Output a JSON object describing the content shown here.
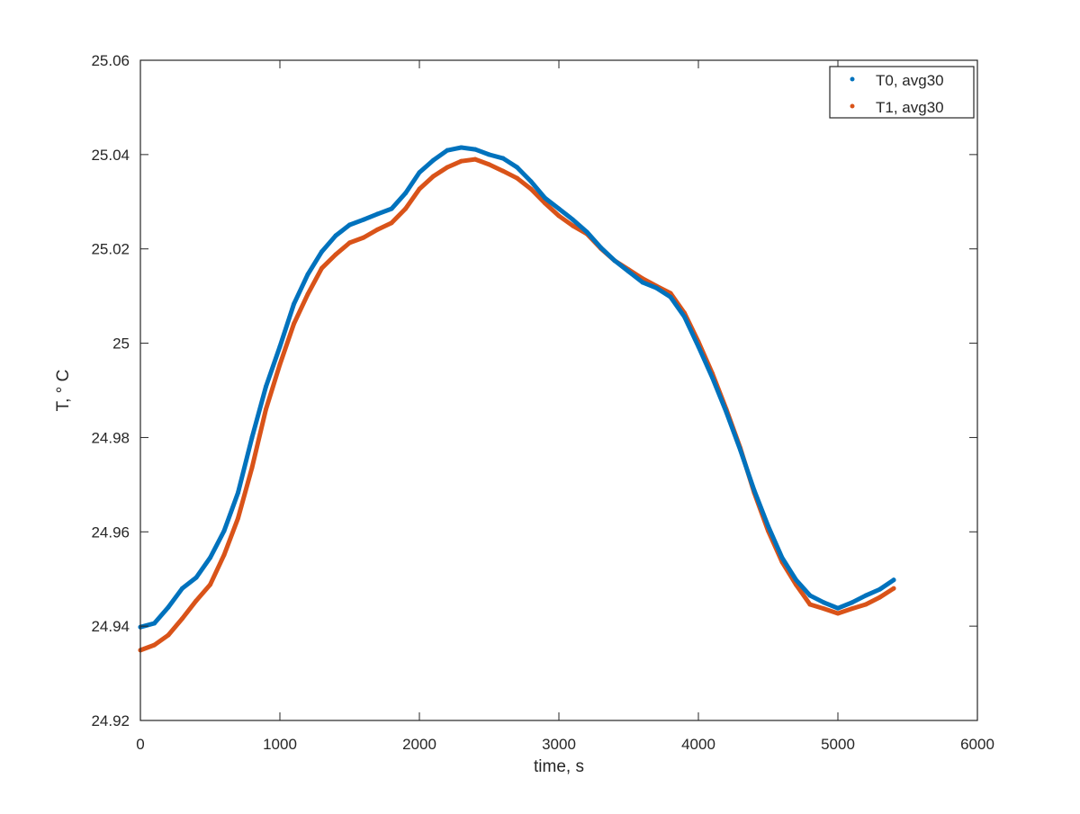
{
  "chart_data": {
    "type": "scatter",
    "title": "",
    "xlabel": "time, s",
    "ylabel": "T, ° C",
    "xlim": [
      0,
      6000
    ],
    "ylim": [
      24.92,
      25.06
    ],
    "xticks": [
      "0",
      "1000",
      "2000",
      "3000",
      "4000",
      "5000",
      "6000"
    ],
    "yticks": [
      "24.92",
      "24.94",
      "24.96",
      "24.98",
      "25",
      "25.02",
      "25.04",
      "25.06"
    ],
    "grid": false,
    "legend_placement": "top-right",
    "x": [
      0,
      100,
      200,
      300,
      400,
      500,
      600,
      700,
      800,
      900,
      1000,
      1100,
      1200,
      1300,
      1400,
      1500,
      1600,
      1700,
      1800,
      1900,
      2000,
      2100,
      2200,
      2300,
      2400,
      2500,
      2600,
      2700,
      2800,
      2900,
      3000,
      3100,
      3200,
      3300,
      3400,
      3500,
      3600,
      3700,
      3800,
      3900,
      4000,
      4100,
      4200,
      4300,
      4400,
      4500,
      4600,
      4700,
      4800,
      4900,
      5000,
      5100,
      5200,
      5300,
      5400
    ],
    "series": [
      {
        "name": "T0, avg30",
        "color": "#0072BD",
        "values": [
          24.9398,
          24.9406,
          24.944,
          24.948,
          24.9503,
          24.9545,
          24.9602,
          24.9683,
          24.98,
          24.9908,
          24.9993,
          25.0083,
          25.0146,
          25.0194,
          25.0228,
          25.0251,
          25.0262,
          25.0274,
          25.0285,
          25.0318,
          25.0362,
          25.0388,
          25.0409,
          25.0415,
          25.0411,
          25.04,
          25.0392,
          25.0373,
          25.0343,
          25.0308,
          25.0285,
          25.0262,
          25.0236,
          25.0203,
          25.0175,
          25.0152,
          25.0129,
          25.0117,
          25.0098,
          25.0056,
          24.9993,
          24.9927,
          24.9854,
          24.9774,
          24.9688,
          24.9612,
          24.9545,
          24.9498,
          24.9465,
          24.945,
          24.9438,
          24.945,
          24.9465,
          24.9478,
          24.9498
        ]
      },
      {
        "name": "T1, avg30",
        "color": "#D95319",
        "values": [
          24.9349,
          24.936,
          24.9381,
          24.9416,
          24.9454,
          24.9488,
          24.9551,
          24.9629,
          24.9736,
          24.986,
          24.9955,
          25.0041,
          25.0104,
          25.0159,
          25.0188,
          25.0213,
          25.0224,
          25.0241,
          25.0255,
          25.0285,
          25.0327,
          25.0354,
          25.0373,
          25.0386,
          25.039,
          25.0379,
          25.0365,
          25.035,
          25.0327,
          25.0297,
          25.027,
          25.0249,
          25.0232,
          25.0201,
          25.0175,
          25.0156,
          25.0137,
          25.0121,
          25.0106,
          25.0064,
          25.0003,
          24.9936,
          24.986,
          24.9778,
          24.9683,
          24.9602,
          24.9536,
          24.9488,
          24.9446,
          24.9437,
          24.9427,
          24.9437,
          24.9446,
          24.9461,
          24.948
        ]
      }
    ]
  }
}
